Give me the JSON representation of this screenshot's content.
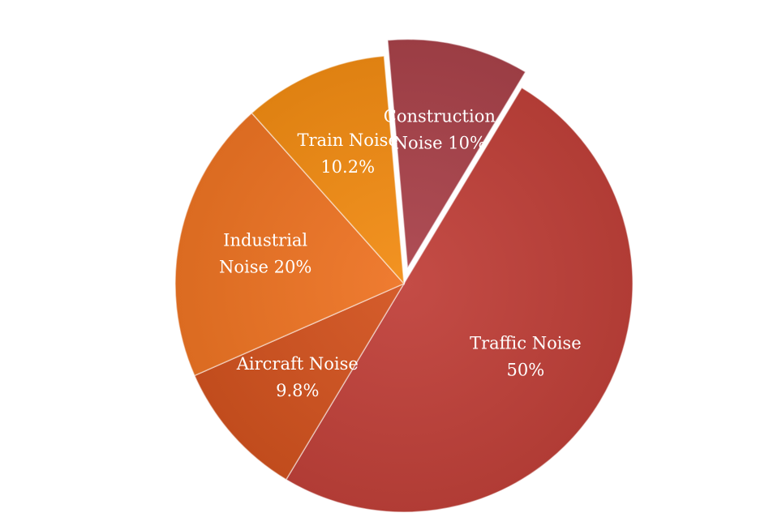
{
  "chart_data": {
    "type": "pie",
    "slices": [
      {
        "label_lines": [
          "Construction",
          "Noise 10%"
        ],
        "value": 10,
        "color": "#a9424a",
        "exploded": true
      },
      {
        "label_lines": [
          "Traffic Noise",
          "50%"
        ],
        "value": 50,
        "color": "#c0413a",
        "exploded": false
      },
      {
        "label_lines": [
          "Aircraft Noise",
          "9.8%"
        ],
        "value": 9.8,
        "color": "#d2531f",
        "exploded": false
      },
      {
        "label_lines": [
          "Industrial",
          "Noise 20%"
        ],
        "value": 20,
        "color": "#ee7424",
        "exploded": false
      },
      {
        "label_lines": [
          "Train Noise",
          "10.2%"
        ],
        "value": 10.2,
        "color": "#f28c14",
        "exploded": false
      }
    ]
  }
}
